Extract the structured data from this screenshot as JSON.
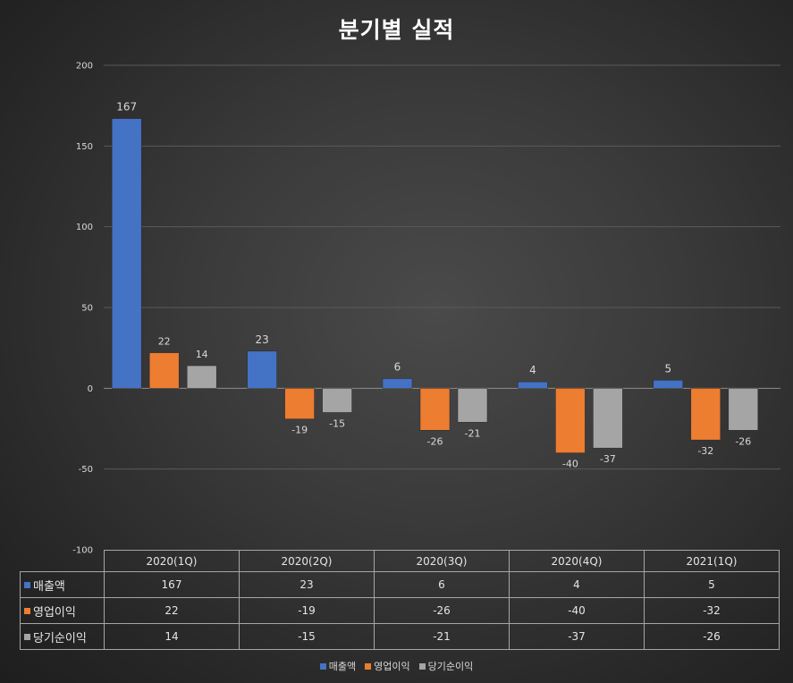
{
  "colors": {
    "series": [
      "#4472c4",
      "#ed7d31",
      "#a5a5a5"
    ],
    "grid": "#5a5a5a",
    "text": "#d9d9d9"
  },
  "chart_data": {
    "type": "bar",
    "title": "분기별 실적",
    "categories": [
      "2020(1Q)",
      "2020(2Q)",
      "2020(3Q)",
      "2020(4Q)",
      "2021(1Q)"
    ],
    "series": [
      {
        "name": "매출액",
        "values": [
          167,
          23,
          6,
          4,
          5
        ]
      },
      {
        "name": "영업이익",
        "values": [
          22,
          -19,
          -26,
          -40,
          -32
        ]
      },
      {
        "name": "당기순이익",
        "values": [
          14,
          -15,
          -21,
          -37,
          -26
        ]
      }
    ],
    "ylim": [
      -100,
      200
    ],
    "yticks": [
      -100,
      -50,
      0,
      50,
      100,
      150,
      200
    ],
    "grid": true,
    "data_table": true,
    "legend": "bottom"
  }
}
